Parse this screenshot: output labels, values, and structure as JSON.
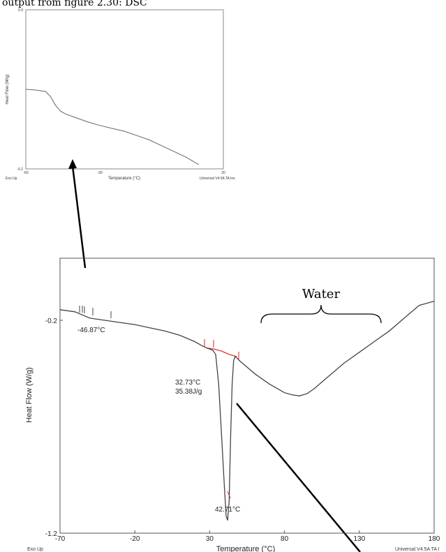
{
  "header_text": "output from figure 2.30: DSC",
  "chart_data": [
    {
      "type": "line",
      "xlabel": "Temperature (°C)",
      "ylabel": "Heat Flow (W/g)",
      "xlim": [
        -60,
        20
      ],
      "ylim": [
        -0.2,
        0.9
      ],
      "x_ticks": [
        "-60",
        "-30",
        "20"
      ],
      "y_ticks": [
        "0.9",
        "-0.2"
      ],
      "footer_left": "Exo Up",
      "footer_right": "Universal V4.5A TA Ins",
      "series": [
        {
          "x": [
            -60,
            -56,
            -52,
            -50,
            -48,
            -46,
            -44,
            -40,
            -35,
            -30,
            -25,
            -20,
            -15,
            -10,
            -5,
            0,
            5,
            10
          ],
          "y": [
            0.35,
            0.345,
            0.335,
            0.3,
            0.24,
            0.2,
            0.18,
            0.155,
            0.125,
            0.1,
            0.08,
            0.06,
            0.03,
            0.0,
            -0.04,
            -0.08,
            -0.12,
            -0.17
          ]
        }
      ]
    },
    {
      "type": "line",
      "xlabel": "Temperature (°C)",
      "ylabel": "Heat Flow (W/g)",
      "xlim": [
        -70,
        180
      ],
      "ylim": [
        -1.2,
        0.2
      ],
      "x_ticks": [
        "-70",
        "-20",
        "30",
        "80",
        "130",
        "180"
      ],
      "y_ticks": [
        "-0.2",
        "-1.2"
      ],
      "footer_left": "Exo Up",
      "footer_right": "Universal V4.5A TA I",
      "series": [
        {
          "x": [
            -70,
            -60,
            -50,
            -40,
            -30,
            -20,
            -10,
            0,
            10,
            20,
            25,
            28,
            30,
            32,
            34,
            36,
            38,
            40,
            41,
            42,
            43,
            44,
            45,
            46,
            47,
            48,
            50,
            55,
            60,
            70,
            80,
            85,
            90,
            95,
            100,
            110,
            120,
            130,
            140,
            150,
            160,
            165,
            170,
            175,
            180
          ],
          "y": [
            -0.15,
            -0.16,
            -0.19,
            -0.2,
            -0.21,
            -0.22,
            -0.235,
            -0.25,
            -0.27,
            -0.3,
            -0.32,
            -0.33,
            -0.335,
            -0.34,
            -0.36,
            -0.5,
            -0.75,
            -1.0,
            -1.12,
            -1.14,
            -1.05,
            -0.75,
            -0.5,
            -0.39,
            -0.37,
            -0.375,
            -0.39,
            -0.42,
            -0.45,
            -0.5,
            -0.54,
            -0.55,
            -0.555,
            -0.545,
            -0.52,
            -0.46,
            -0.4,
            -0.35,
            -0.3,
            -0.25,
            -0.19,
            -0.16,
            -0.13,
            -0.12,
            -0.11
          ]
        }
      ],
      "baseline": {
        "x": [
          28,
          33,
          38,
          43,
          48
        ],
        "y": [
          -0.33,
          -0.335,
          -0.345,
          -0.36,
          -0.37
        ]
      },
      "annotations": [
        {
          "text": "-46.87°C"
        },
        {
          "text": "32.73°C"
        },
        {
          "text": "35.38J/g"
        },
        {
          "text": "42.71°C"
        }
      ],
      "region_label": "Water"
    }
  ]
}
